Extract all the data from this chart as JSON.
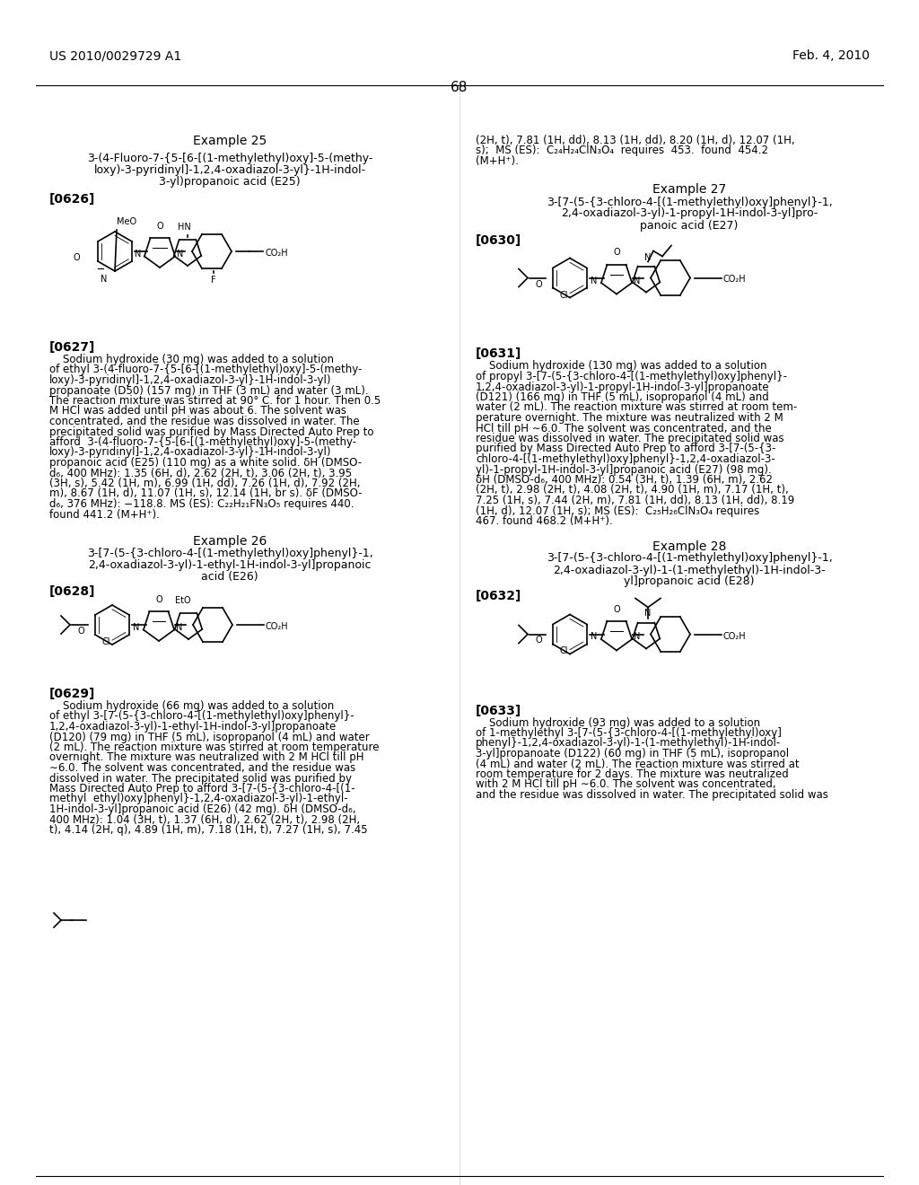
{
  "page_header_left": "US 2010/0029729 A1",
  "page_header_right": "Feb. 4, 2010",
  "page_number": "68",
  "background_color": "#ffffff",
  "text_color": "#000000",
  "font_size_header": 11,
  "font_size_body": 9,
  "font_size_example_title": 10,
  "font_size_bracket": 10,
  "example25_title_line1": "3-(4-Fluoro-7-{5-[6-[(1-methylethyl)oxy]-5-(methy-",
  "example25_title_line2": "loxy)-3-pyridinyl]-1,2,4-oxadiazol-3-yl}-1H-indol-",
  "example25_title_line3": "3-yl)propanoic acid (E25)",
  "example25_bracket": "[0626]",
  "example26_title_line1": "3-[7-(5-{3-chloro-4-[(1-methylethyl)oxy]phenyl}-1,",
  "example26_title_line2": "2,4-oxadiazol-3-yl)-1-ethyl-1H-indol-3-yl]propanoic",
  "example26_title_line3": "acid (E26)",
  "example26_bracket": "[0628]",
  "example27_title_line1": "3-[7-(5-{3-chloro-4-[(1-methylethyl)oxy]phenyl}-1,",
  "example27_title_line2": "2,4-oxadiazol-3-yl)-1-propyl-1H-indol-3-yl]pro-",
  "example27_title_line3": "panoic acid (E27)",
  "example27_bracket": "[0630]",
  "example28_title_line1": "3-[7-(5-{3-chloro-4-[(1-methylethyl)oxy]phenyl}-1,",
  "example28_title_line2": "2,4-oxadiazol-3-yl)-1-(1-methylethyl)-1H-indol-3-",
  "example28_title_line3": "yl]propanoic acid (E28)",
  "example28_bracket": "[0632]",
  "text_0627_line1": "    Sodium hydroxide (30 mg) was added to a solution",
  "text_0627_line2": "of ethyl 3-(4-fluoro-7-{5-[6-[(1-methylethyl)oxy]-5-(methy-",
  "text_0627_line3": "loxy)-3-pyridinyl]-1,2,4-oxadiazol-3-yl}-1H-indol-3-yl)",
  "text_0627_line4": "propanoate (D50) (157 mg) in THF (3 mL) and water (3 mL).",
  "text_0627_line5": "The reaction mixture was stirred at 90° C. for 1 hour. Then 0.5",
  "text_0627_line6": "M HCl was added until pH was about 6. The solvent was",
  "text_0627_line7": "concentrated, and the residue was dissolved in water. The",
  "text_0627_line8": "precipitated solid was purified by Mass Directed Auto Prep to",
  "text_0627_cont_line1": "afford  3-(4-fluoro-7-{5-[6-[(1-methylethyl)oxy]-5-(methy-",
  "text_0627_cont_line2": "loxy)-3-pyridinyl]-1,2,4-oxadiazol-3-yl}-1H-indol-3-yl)",
  "text_0627_cont_line3": "propanoic acid (E25) (110 mg) as a white solid. δH (DMSO-",
  "text_0627_cont_line4": "d₆, 400 MHz): 1.35 (6H, d), 2.62 (2H, t), 3.06 (2H, t), 3.95",
  "text_0627_cont_line5": "(3H, s), 5.42 (1H, m), 6.99 (1H, dd), 7.26 (1H, d), 7.92 (2H,",
  "text_0627_cont_line6": "m), 8.67 (1H, d), 11.07 (1H, s), 12.14 (1H, br s). δF (DMSO-",
  "text_0627_cont_line7": "d₆, 376 MHz): −118.8. MS (ES): C₂₂H₁F N₃O₅ requires 440.",
  "text_0627_cont_line8": "found 441.2 (M+H⁺).",
  "text_0629_line1": "    Sodium hydroxide (66 mg) was added to a solution",
  "text_0629_line2": "of ethyl 3-[7-(5-{3-chloro-4-[(1-methylethyl)oxy]phenyl}-",
  "text_0629_line3": "1,2,4-oxadiazol-3-yl)-1-ethyl-1H-indol-3-yl]propanoate",
  "text_0629_line4": "(D120) (79 mg) in THF (5 mL), isopropanol (4 mL) and water",
  "text_0629_line5": "(2 mL). The reaction mixture was stirred at room temperature",
  "text_0629_line6": "overnight. The mixture was neutralized with 2 M HCl till pH",
  "text_0629_line7": "∼6.0. The solvent was concentrated, and the residue was",
  "text_0629_line8": "dissolved in water. The precipitated solid was purified by",
  "text_0629_line9": "Mass Directed Auto Prep to afford 3-[7-(5-{3-chloro-4-[(1-",
  "text_0629_line10": "methyl  ethyl)oxy]phenyl}-1,2,4-oxadiazol-3-yl)-1-ethyl-",
  "text_0629_line11": "1H-indol-3-yl]propanoic acid (E26) (42 mg). δH (DMSO-d₆,",
  "text_0629_line12": "400 MHz): 1.04 (3H, t), 1.37 (6H, d), 2.62 (2H, t), 2.98 (2H,",
  "text_0629_line13": "t), 4.14 (2H, q), 4.89 (1H, m), 7.18 (1H, t), 7.27 (1H, s), 7.45",
  "text_right_top_line1": "(2H, t), 7.81 (1H, dd), 8.13 (1H, dd), 8.20 (1H, d), 12.07 (1H,",
  "text_right_top_line2": "s);  MS (ES):  C₂₄H₂₄ClN₃O₄  requires  453.  found  454.2",
  "text_right_top_line3": "(M+H⁺).",
  "text_0631_line1": "    Sodium hydroxide (130 mg) was added to a solution",
  "text_0631_line2": "of propyl 3-[7-(5-{3-chloro-4-[(1-methylethyl)oxy]phenyl}-",
  "text_0631_line3": "1,2,4-oxadiazol-3-yl)-1-propyl-1H-indol-3-yl]propanoate",
  "text_0631_line4": "(D121) (166 mg) in THF (5 mL), isopropanol (4 mL) and",
  "text_0631_line5": "water (2 mL). The reaction mixture was stirred at room tem-",
  "text_0631_line6": "perature overnight. The mixture was neutralized with 2 M",
  "text_0631_line7": "HCl till pH ∼6.0. The solvent was concentrated, and the",
  "text_0631_line8": "residue was dissolved in water. The precipitated solid was",
  "text_0631_line9": "purified by Mass Directed Auto Prep to afford 3-[7-(5-{3-",
  "text_0631_line10": "chloro-4-[(1-methylethyl)oxy]phenyl}-1,2,4-oxadiazol-3-",
  "text_0631_line11": "yl)-1-propyl-1H-indol-3-yl]propanoic acid (E27) (98 mg).",
  "text_0631_line12": "δH (DMSO-d₆, 400 MHz): 0.54 (3H, t), 1.39 (6H, m), 2.62",
  "text_0631_line13": "(2H, t), 2.98 (2H, t), 4.08 (2H, t), 4.90 (1H, m), 7.17 (1H, t),",
  "text_0631_line14": "7.25 (1H, s), 7.44 (2H, m), 7.81 (1H, dd), 8.13 (1H, dd), 8.19",
  "text_0631_line15": "(1H, d), 12.07 (1H, s); MS (ES):  C₂₅H₂₆ClN₃O₄ requires",
  "text_0631_line16": "467. found 468.2 (M+H⁺).",
  "text_0633_line1": "    Sodium hydroxide (93 mg) was added to a solution",
  "text_0633_line2": "of 1-methylethyl 3-[7-(5-{3-chloro-4-[(1-methylethyl)oxy]",
  "text_0633_line3": "phenyl}-1,2,4-oxadiazol-3-yl)-1-(1-methylethyl)-1H-indol-",
  "text_0633_line4": "3-yl]propanoate (D122) (60 mg) in THF (5 mL), isopropanol",
  "text_0633_line5": "(4 mL) and water (2 mL). The reaction mixture was stirred at",
  "text_0633_line6": "room temperature for 2 days. The mixture was neutralized",
  "text_0633_line7": "with 2 M HCl till pH ∼6.0. The solvent was concentrated,",
  "text_0633_line8": "and the residue was dissolved in water. The precipitated solid was"
}
